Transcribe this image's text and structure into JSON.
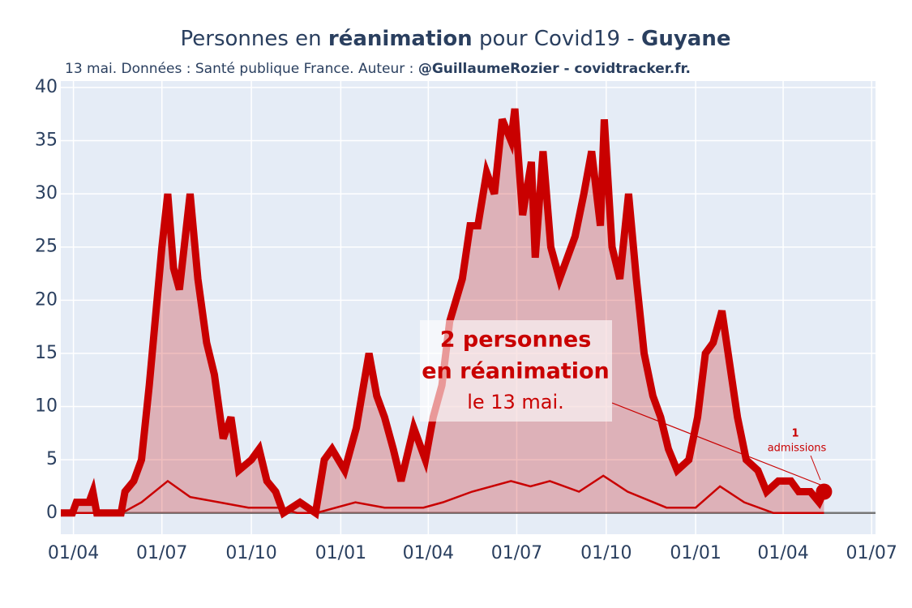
{
  "chart_data": {
    "type": "line",
    "title": [
      "Personnes en ",
      "réanimation",
      " pour Covid19 - ",
      "Guyane"
    ],
    "subtitle": [
      "13 mai. Données : Santé publique France. Auteur : ",
      "@GuillaumeRozier - covidtracker.fr."
    ],
    "xlim": [
      -13,
      825
    ],
    "xticks": [
      {
        "value": 0,
        "label": "01/04"
      },
      {
        "value": 91,
        "label": "01/07"
      },
      {
        "value": 183,
        "label": "01/10"
      },
      {
        "value": 275,
        "label": "01/01"
      },
      {
        "value": 365,
        "label": "01/04"
      },
      {
        "value": 456,
        "label": "01/07"
      },
      {
        "value": 548,
        "label": "01/10"
      },
      {
        "value": 640,
        "label": "01/01"
      },
      {
        "value": 730,
        "label": "01/04"
      },
      {
        "value": 821,
        "label": "01/07"
      }
    ],
    "ylim": [
      -2,
      40.6
    ],
    "yticks": [
      0,
      5,
      10,
      15,
      20,
      25,
      30,
      35,
      40
    ],
    "grid": true,
    "series": [
      {
        "color": "#c90000",
        "fill": true,
        "x": [
          -13,
          -1,
          3,
          16,
          20,
          24,
          49,
          53,
          62,
          70,
          78,
          87,
          91,
          97,
          103,
          109,
          120,
          128,
          137,
          145,
          154,
          162,
          170,
          183,
          191,
          199,
          208,
          216,
          233,
          249,
          258,
          266,
          279,
          291,
          304,
          312,
          320,
          329,
          337,
          350,
          362,
          370,
          379,
          387,
          400,
          408,
          416,
          425,
          433,
          441,
          450,
          454,
          462,
          471,
          475,
          483,
          491,
          500,
          508,
          516,
          525,
          533,
          542,
          546,
          554,
          562,
          571,
          579,
          587,
          596,
          604,
          612,
          621,
          633,
          642,
          650,
          658,
          667,
          675,
          683,
          692,
          704,
          713,
          725,
          738,
          746,
          758,
          767,
          772
        ],
        "values": [
          0,
          0,
          1,
          1,
          2,
          0,
          0,
          2,
          3,
          5,
          12,
          21,
          25,
          30,
          23,
          21,
          30,
          22,
          16,
          13,
          7,
          9,
          4,
          5,
          6,
          3,
          2,
          0,
          1,
          0,
          5,
          6,
          4,
          8,
          15,
          11,
          9,
          6,
          3,
          8,
          5,
          9,
          12,
          18,
          22,
          27,
          27,
          32,
          30,
          37,
          35,
          38,
          28,
          33,
          24,
          34,
          25,
          22,
          24,
          26,
          30,
          34,
          27,
          37,
          25,
          22,
          30,
          22,
          15,
          11,
          9,
          6,
          4,
          5,
          9,
          15,
          16,
          19,
          14,
          9,
          5,
          4,
          2,
          3,
          3,
          2,
          2,
          1,
          2
        ]
      },
      {
        "color": "#c90000",
        "fill": false,
        "x": [
          -13,
          50,
          70,
          97,
          120,
          150,
          180,
          210,
          230,
          250,
          290,
          320,
          360,
          380,
          410,
          450,
          470,
          490,
          520,
          545,
          570,
          610,
          640,
          665,
          690,
          720,
          772
        ],
        "values": [
          0,
          0,
          1,
          3,
          1.5,
          1,
          0.5,
          0.5,
          0,
          0,
          1,
          0.5,
          0.5,
          1,
          2,
          3,
          2.5,
          3,
          2,
          3.5,
          2,
          0.5,
          0.5,
          2.5,
          1,
          0,
          0
        ]
      }
    ],
    "annotation": [
      "2 personnes",
      "en réanimation",
      "le 13 mai."
    ],
    "admissions_annotation": [
      "1",
      "admissions"
    ]
  }
}
